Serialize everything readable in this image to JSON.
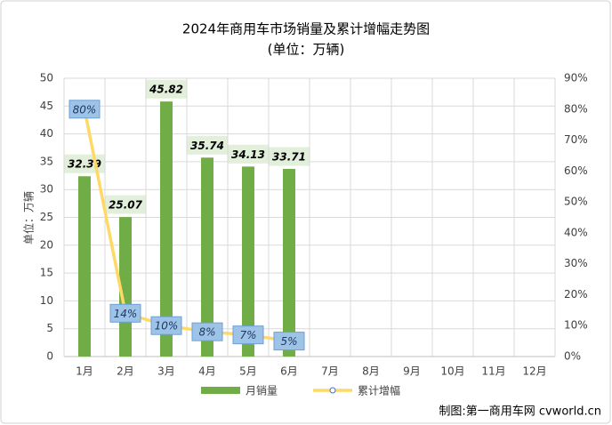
{
  "chart_data": {
    "type": "bar",
    "title": "2024年商用车市场销量及累计增幅走势图",
    "subtitle": "(单位：万辆)",
    "y_label": "单位：万辆",
    "source": "制图:第一商用车网 cvworld.cn",
    "categories": [
      "1月",
      "2月",
      "3月",
      "4月",
      "5月",
      "6月",
      "7月",
      "8月",
      "9月",
      "10月",
      "11月",
      "12月"
    ],
    "series": [
      {
        "name": "月销量",
        "type": "bar",
        "color": "#70ad47",
        "values": [
          32.39,
          25.07,
          45.82,
          35.74,
          34.13,
          33.71,
          null,
          null,
          null,
          null,
          null,
          null
        ]
      },
      {
        "name": "累计增幅",
        "type": "line",
        "axis": "y2",
        "color": "#ffd966",
        "marker_color": "#4472c4",
        "values": [
          80,
          14,
          10,
          8,
          7,
          5,
          null,
          null,
          null,
          null,
          null,
          null
        ],
        "value_labels": [
          "80%",
          "14%",
          "10%",
          "8%",
          "7%",
          "5%",
          null,
          null,
          null,
          null,
          null,
          null
        ]
      }
    ],
    "ylim": [
      0,
      50
    ],
    "yticks": [
      0,
      5,
      10,
      15,
      20,
      25,
      30,
      35,
      40,
      45,
      50
    ],
    "y2lim": [
      0,
      90
    ],
    "y2ticks": [
      {
        "value": 0,
        "label": "0%"
      },
      {
        "value": 10,
        "label": "10%"
      },
      {
        "value": 20,
        "label": "20%"
      },
      {
        "value": 30,
        "label": "30%"
      },
      {
        "value": 40,
        "label": "40%"
      },
      {
        "value": 50,
        "label": "50%"
      },
      {
        "value": 60,
        "label": "60%"
      },
      {
        "value": 70,
        "label": "70%"
      },
      {
        "value": 80,
        "label": "80%"
      },
      {
        "value": 90,
        "label": "90%"
      }
    ],
    "grid": true,
    "legend": "bottom"
  }
}
